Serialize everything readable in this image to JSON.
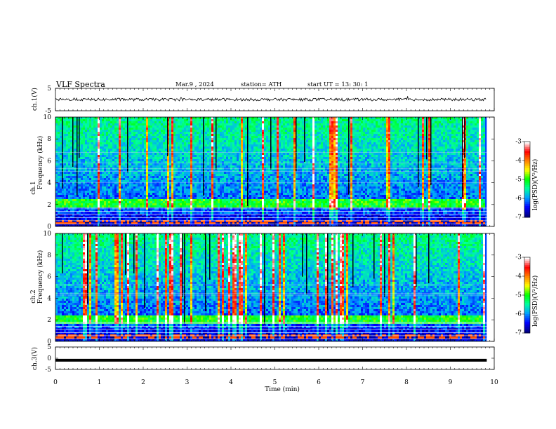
{
  "header": {
    "title": "VLF Spectra",
    "date": "Mar.9 , 2024",
    "station": "station= ATH",
    "start": "start UT = 13: 30: 1"
  },
  "chart_data": [
    {
      "type": "line",
      "name": "ch1_waveform",
      "ylabel": "ch.1(V)",
      "ylim": [
        -5,
        5
      ],
      "yticks": [
        "5",
        "-5"
      ],
      "x_range": [
        0,
        9.83
      ],
      "level": 0,
      "noise_amplitude": 0.6
    },
    {
      "type": "heatmap",
      "name": "ch1_spectrogram",
      "ylabel_line1": "ch.1",
      "ylabel_line2": "Frequency (kHz)",
      "ylim": [
        0,
        10
      ],
      "yticks": [
        "0",
        "2",
        "4",
        "6",
        "8",
        "10"
      ],
      "x_range": [
        0,
        9.83
      ],
      "colorbar": {
        "label": "log(PSD)(V²/Hz)",
        "range": [
          -7,
          -3
        ],
        "ticks": [
          "-3",
          "-4",
          "-5",
          "-6",
          "-7"
        ]
      },
      "band_enhancement_khz": 2.1
    },
    {
      "type": "heatmap",
      "name": "ch2_spectrogram",
      "ylabel_line1": "ch.2",
      "ylabel_line2": "Frequency (kHz)",
      "ylim": [
        0,
        10
      ],
      "yticks": [
        "0",
        "2",
        "4",
        "6",
        "8",
        "10"
      ],
      "x_range": [
        0,
        9.83
      ],
      "colorbar": {
        "label": "log(PSD)(V²/Hz)",
        "range": [
          -7,
          -3
        ],
        "ticks": [
          "-3",
          "-4",
          "-5",
          "-6",
          "-7"
        ]
      },
      "band_enhancement_khz": 2.0
    },
    {
      "type": "line",
      "name": "ch3_waveform",
      "ylabel": "ch.3(V)",
      "ylim": [
        -5,
        5
      ],
      "yticks": [
        "5",
        "0",
        "-5"
      ],
      "x_range": [
        0,
        9.83
      ],
      "level": -0.9
    }
  ],
  "xaxis": {
    "label": "Time (min)",
    "range": [
      0,
      10
    ],
    "ticks": [
      "0",
      "1",
      "2",
      "3",
      "4",
      "5",
      "6",
      "7",
      "8",
      "9",
      "10"
    ]
  },
  "colors": {
    "colormap": [
      "#000080",
      "#0000ff",
      "#00a0ff",
      "#00ffa0",
      "#00ff00",
      "#ffff00",
      "#ff8000",
      "#ff0000",
      "#ffffff"
    ]
  }
}
